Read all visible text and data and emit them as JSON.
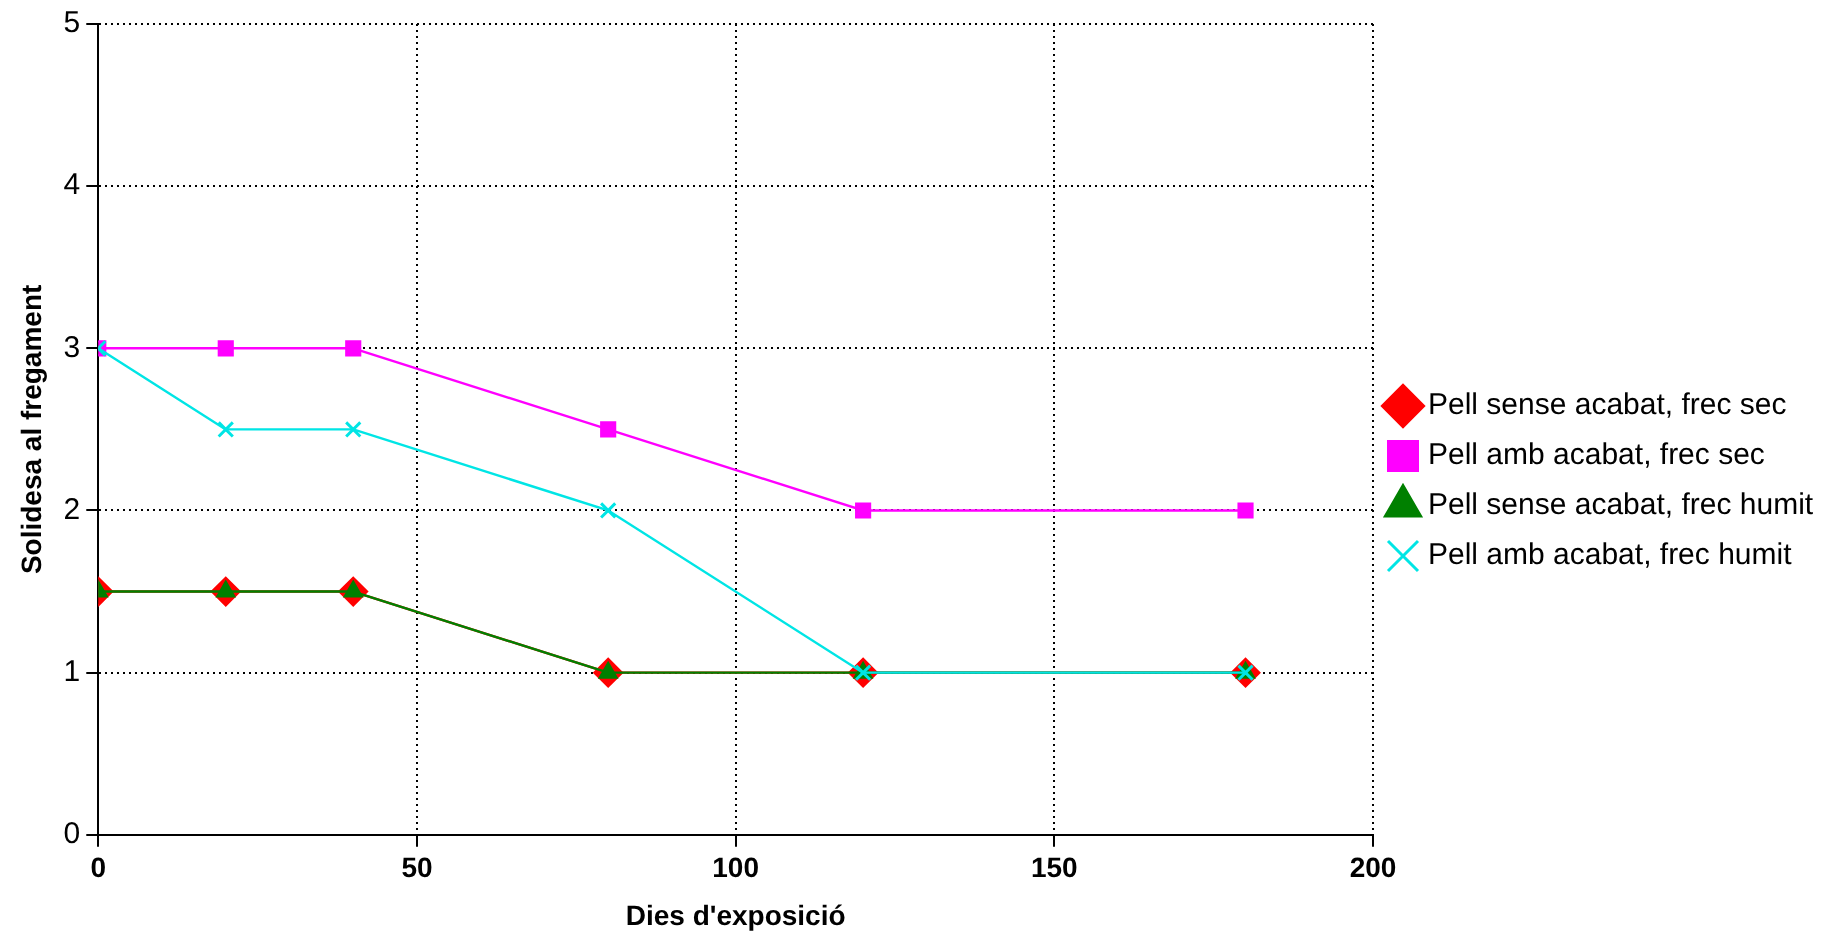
{
  "chart_data": {
    "type": "line",
    "xlabel": "Dies d'exposició",
    "ylabel": "Solidesa al fregament",
    "x": [
      0,
      20,
      40,
      80,
      120,
      180
    ],
    "series": [
      {
        "name": "Pell sense acabat, frec sec",
        "color": "#ff0000",
        "marker": "diamond",
        "values": [
          1.5,
          1.5,
          1.5,
          1,
          1,
          1
        ]
      },
      {
        "name": "Pell amb acabat, frec sec",
        "color": "#ff00ff",
        "marker": "square",
        "values": [
          3,
          3,
          3,
          2.5,
          2,
          2
        ]
      },
      {
        "name": "Pell sense acabat, frec humit",
        "color": "#008000",
        "marker": "triangle",
        "values": [
          1.5,
          1.5,
          1.5,
          1,
          1,
          1
        ]
      },
      {
        "name": "Pell amb acabat, frec humit",
        "color": "#00e5e5",
        "marker": "cross",
        "values": [
          3,
          2.5,
          2.5,
          2,
          1,
          1
        ]
      }
    ],
    "xlim": [
      0,
      200
    ],
    "xticks": [
      0,
      50,
      100,
      150,
      200
    ],
    "ylim": [
      0,
      5
    ],
    "yticks": [
      0,
      1,
      2,
      3,
      4,
      5
    ],
    "grid": true,
    "legend": "right",
    "line_style": "solid"
  }
}
